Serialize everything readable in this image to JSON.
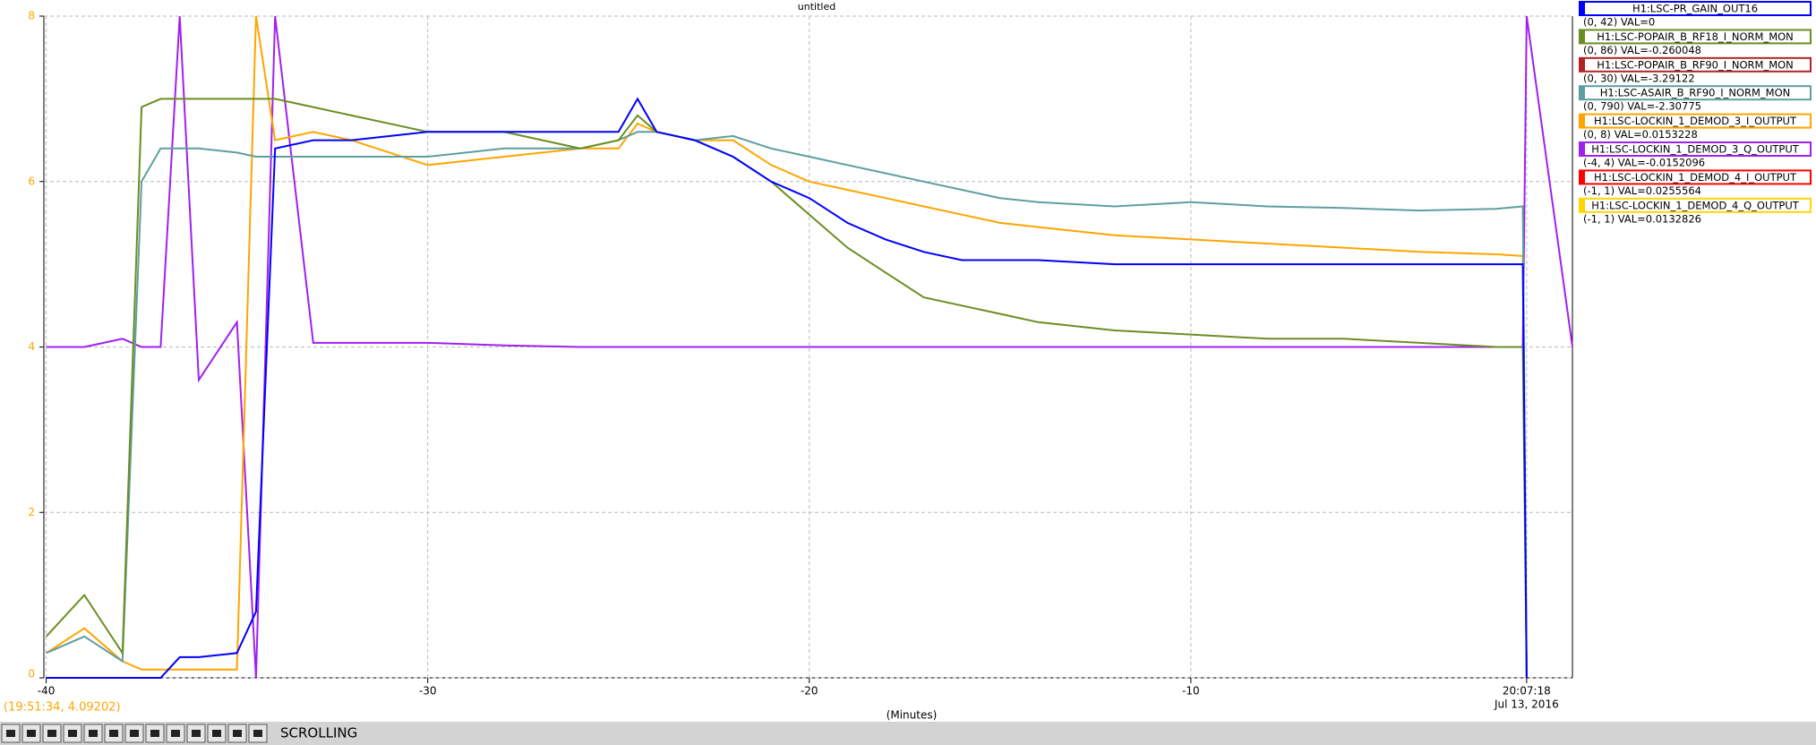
{
  "chart_data": {
    "type": "line",
    "title": "untitled",
    "xlabel": "(Minutes)",
    "x": [
      -40,
      -39,
      -38,
      -37.5,
      -37,
      -36.5,
      -36,
      -35,
      -34.5,
      -34,
      -33,
      -32,
      -30,
      -28,
      -26,
      -25,
      -24.5,
      -24,
      -23,
      -22,
      -21,
      -20,
      -19,
      -18,
      -17,
      -16,
      -15,
      -14,
      -12,
      -10,
      -8,
      -6,
      -4,
      -2,
      -1.3,
      -1.2,
      0
    ],
    "xlim": [
      -40.06,
      0
    ],
    "ylim": [
      0,
      8
    ],
    "xticks": [
      -40,
      -30,
      -20,
      -10,
      {
        "value": -1.2,
        "label": "20:07:18"
      }
    ],
    "date_label": "Jul 13, 2016",
    "yticks": [
      0,
      2,
      4,
      6,
      8
    ],
    "grid": true,
    "legend": "right",
    "series": [
      {
        "name": "H1:LSC-PR_GAIN_OUT16",
        "info": "(0, 42) VAL=0",
        "color": "#0000ff",
        "values": [
          0,
          0,
          0,
          0,
          0,
          0.25,
          0.25,
          0.3,
          0.8,
          6.4,
          6.5,
          6.5,
          6.6,
          6.6,
          6.6,
          6.6,
          7.0,
          6.6,
          6.5,
          6.3,
          6.0,
          5.8,
          5.5,
          5.3,
          5.15,
          5.05,
          5.05,
          5.05,
          5.0,
          5.0,
          5.0,
          5.0,
          5.0,
          5.0,
          5.0,
          0,
          null
        ]
      },
      {
        "name": "H1:LSC-POPAIR_B_RF18_I_NORM_MON",
        "info": "(0, 86) VAL=-0.260048",
        "color": "#6b8e23",
        "values": [
          0.5,
          1.0,
          0.3,
          6.9,
          7.0,
          7.0,
          7.0,
          7.0,
          7.0,
          7.0,
          6.9,
          6.8,
          6.6,
          6.6,
          6.4,
          6.5,
          6.8,
          6.6,
          6.5,
          6.3,
          6.0,
          5.6,
          5.2,
          4.9,
          4.6,
          4.5,
          4.4,
          4.3,
          4.2,
          4.15,
          4.1,
          4.1,
          4.05,
          4.0,
          4.0,
          0,
          null
        ]
      },
      {
        "name": "H1:LSC-POPAIR_B_RF90_I_NORM_MON",
        "info": "(0, 30) VAL=-3.29122",
        "color": "#b22222",
        "values": [
          null,
          null,
          null,
          null,
          null,
          null,
          null,
          null,
          null,
          null,
          null,
          null,
          null,
          null,
          null,
          null,
          null,
          null,
          null,
          null,
          null,
          null,
          null,
          null,
          null,
          null,
          null,
          null,
          null,
          null,
          null,
          null,
          null,
          null,
          null,
          null,
          null
        ]
      },
      {
        "name": "H1:LSC-ASAIR_B_RF90_I_NORM_MON",
        "info": "(0, 790) VAL=-2.30775",
        "color": "#5f9ea0",
        "values": [
          0.3,
          0.5,
          0.2,
          6.0,
          6.4,
          6.4,
          6.4,
          6.35,
          6.3,
          6.3,
          6.3,
          6.3,
          6.3,
          6.4,
          6.4,
          6.5,
          6.6,
          6.6,
          6.5,
          6.55,
          6.4,
          6.3,
          6.2,
          6.1,
          6.0,
          5.9,
          5.8,
          5.75,
          5.7,
          5.75,
          5.7,
          5.68,
          5.65,
          5.67,
          5.7,
          0,
          null
        ]
      },
      {
        "name": "H1:LSC-LOCKIN_1_DEMOD_3_I_OUTPUT",
        "info": "(0, 8) VAL=0.0153228",
        "color": "#ffa500",
        "values": [
          0.3,
          0.6,
          0.2,
          0.1,
          0.1,
          0.1,
          0.1,
          0.1,
          8,
          6.5,
          6.6,
          6.5,
          6.2,
          6.3,
          6.4,
          6.4,
          6.7,
          6.6,
          6.5,
          6.5,
          6.2,
          6.0,
          5.9,
          5.8,
          5.7,
          5.6,
          5.5,
          5.45,
          5.35,
          5.3,
          5.25,
          5.2,
          5.15,
          5.12,
          5.1,
          0,
          null
        ]
      },
      {
        "name": "H1:LSC-LOCKIN_1_DEMOD_3_Q_OUTPUT",
        "info": "(-4, 4) VAL=-0.0152096",
        "color": "#a020f0",
        "values": [
          4.0,
          4.0,
          4.1,
          4.0,
          4.0,
          8,
          3.6,
          4.3,
          0,
          8,
          4.05,
          4.05,
          4.05,
          4.02,
          4.0,
          4.0,
          4.0,
          4.0,
          4.0,
          4.0,
          4.0,
          4.0,
          4.0,
          4.0,
          4.0,
          4.0,
          4.0,
          4.0,
          4.0,
          4.0,
          4.0,
          4.0,
          4.0,
          4.0,
          4.0,
          8,
          4.0
        ]
      },
      {
        "name": "H1:LSC-LOCKIN_1_DEMOD_4_I_OUTPUT",
        "info": "(-1, 1) VAL=0.0255564",
        "color": "#ff0000",
        "values": [
          null,
          null,
          null,
          null,
          null,
          null,
          null,
          null,
          null,
          null,
          null,
          null,
          null,
          null,
          null,
          null,
          null,
          null,
          null,
          null,
          null,
          null,
          null,
          null,
          null,
          null,
          null,
          null,
          null,
          null,
          null,
          null,
          null,
          null,
          null,
          null,
          null
        ]
      },
      {
        "name": "H1:LSC-LOCKIN_1_DEMOD_4_Q_OUTPUT",
        "info": "(-1, 1) VAL=0.0132826",
        "color": "#ffd700",
        "values": [
          null,
          null,
          null,
          null,
          null,
          null,
          null,
          null,
          null,
          null,
          null,
          null,
          null,
          null,
          null,
          null,
          null,
          null,
          null,
          null,
          null,
          null,
          null,
          null,
          null,
          null,
          null,
          null,
          null,
          null,
          null,
          null,
          null,
          null,
          null,
          null,
          null
        ]
      }
    ]
  },
  "status": "(19:51:34, 4.09202)",
  "toolbar": {
    "mode": "SCROLLING"
  }
}
